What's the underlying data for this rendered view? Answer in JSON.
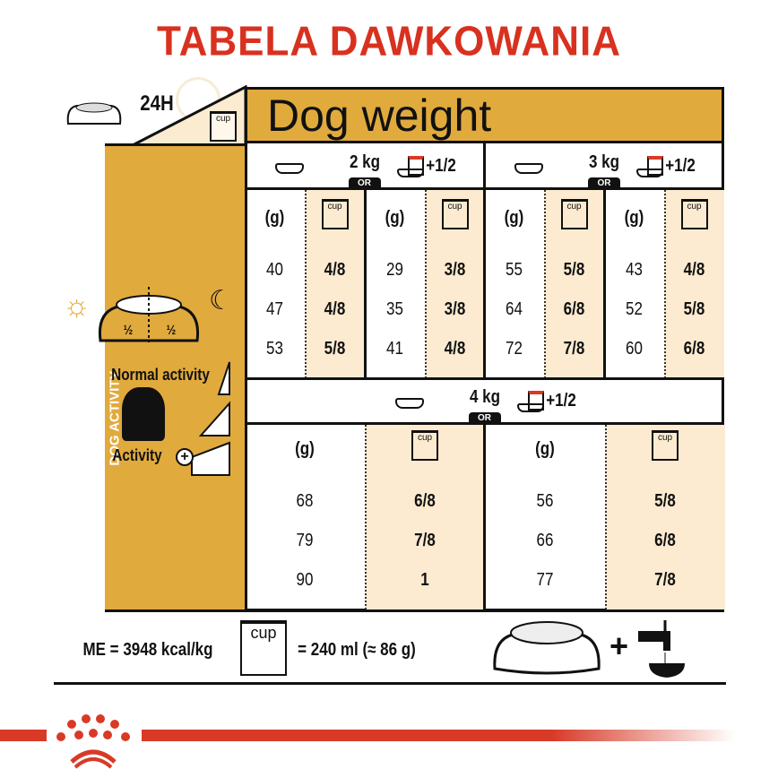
{
  "title": "TABELA DAWKOWANIA",
  "header": {
    "time_label": "24H",
    "cup_label": "cup",
    "dog_weight": "Dog weight"
  },
  "left": {
    "half1": "½",
    "half2": "½",
    "vertical_label": "DOG ACTIVITY",
    "normal_activity": "Normal activity",
    "activity": "Activity"
  },
  "or": "OR",
  "plus_half": "+1/2",
  "col_g": "(g)",
  "top_groups": [
    {
      "weight": "2 kg",
      "dry": {
        "g": [
          "40",
          "47",
          "53"
        ],
        "cup": [
          "4/8",
          "4/8",
          "5/8"
        ]
      },
      "mixed": {
        "g": [
          "29",
          "35",
          "41"
        ],
        "cup": [
          "3/8",
          "3/8",
          "4/8"
        ]
      }
    },
    {
      "weight": "3 kg",
      "dry": {
        "g": [
          "55",
          "64",
          "72"
        ],
        "cup": [
          "5/8",
          "6/8",
          "7/8"
        ]
      },
      "mixed": {
        "g": [
          "43",
          "52",
          "60"
        ],
        "cup": [
          "4/8",
          "5/8",
          "6/8"
        ]
      }
    }
  ],
  "bottom_group": {
    "weight": "4 kg",
    "dry": {
      "g": [
        "68",
        "79",
        "90"
      ],
      "cup": [
        "6/8",
        "7/8",
        "1"
      ]
    },
    "mixed": {
      "g": [
        "56",
        "66",
        "77"
      ],
      "cup": [
        "5/8",
        "6/8",
        "7/8"
      ]
    }
  },
  "footer": {
    "energy": "ME = 3948 kcal/kg",
    "cup_equiv": "= 240 ml (≈ 86 g)"
  },
  "colors": {
    "title_red": "#d8311f",
    "gold": "#e1aa3d",
    "beige": "#fcebd0",
    "brand_red": "#d83a27"
  }
}
